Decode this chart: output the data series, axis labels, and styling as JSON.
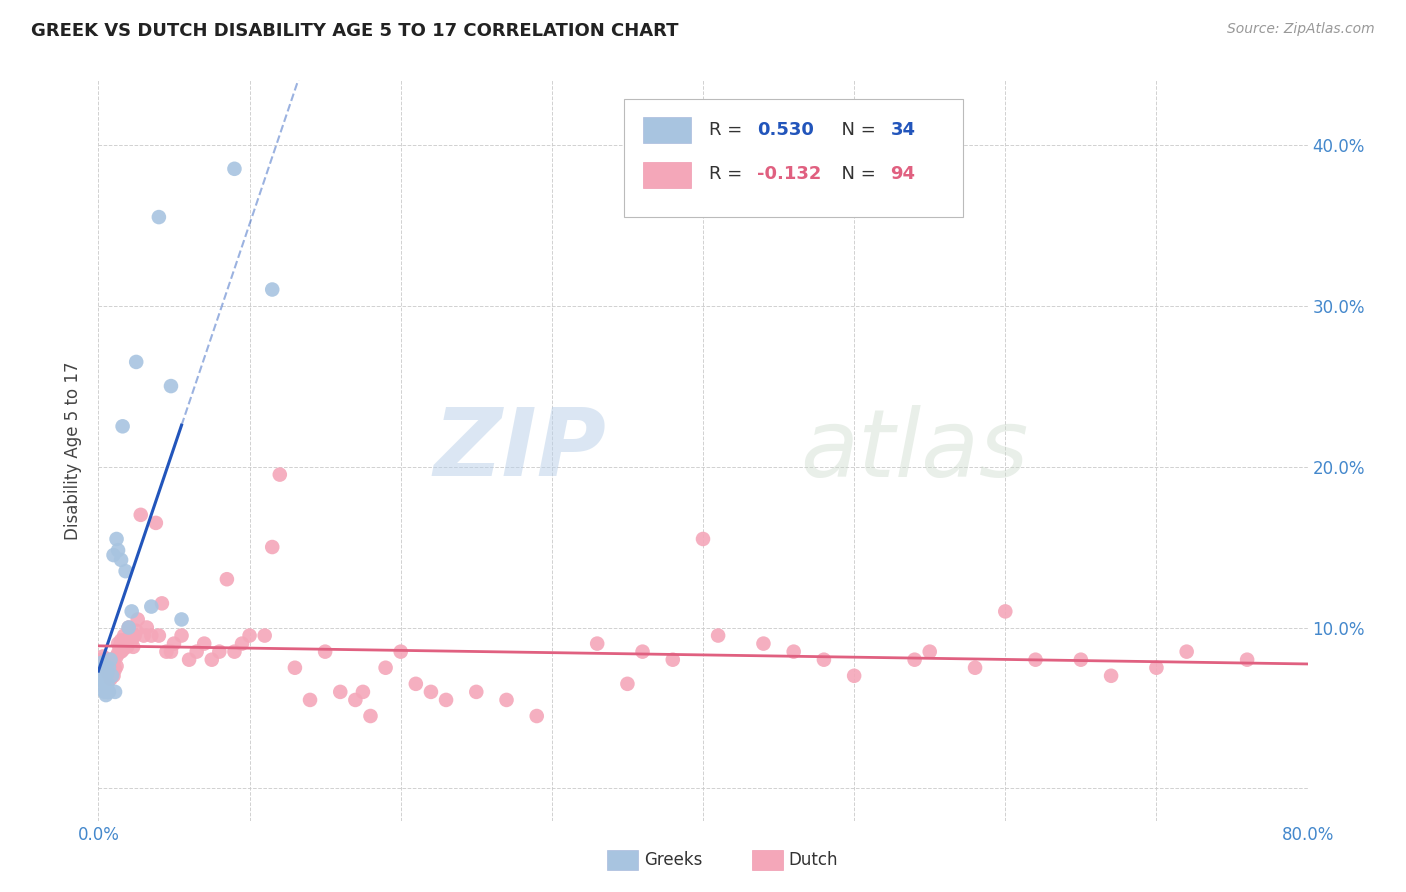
{
  "title": "GREEK VS DUTCH DISABILITY AGE 5 TO 17 CORRELATION CHART",
  "source": "Source: ZipAtlas.com",
  "ylabel": "Disability Age 5 to 17",
  "xlim": [
    0.0,
    0.8
  ],
  "ylim": [
    -0.02,
    0.44
  ],
  "xticks": [
    0.0,
    0.1,
    0.2,
    0.3,
    0.4,
    0.5,
    0.6,
    0.7,
    0.8
  ],
  "xticklabels": [
    "0.0%",
    "",
    "",
    "",
    "",
    "",
    "",
    "",
    "80.0%"
  ],
  "yticks": [
    0.0,
    0.1,
    0.2,
    0.3,
    0.4
  ],
  "yticklabels": [
    "",
    "10.0%",
    "20.0%",
    "30.0%",
    "40.0%"
  ],
  "greek_color": "#a8c4e0",
  "dutch_color": "#f4a7b9",
  "greek_line_color": "#2255bb",
  "dutch_line_color": "#e06080",
  "legend_greek_r": "0.530",
  "legend_greek_n": "34",
  "legend_dutch_r": "-0.132",
  "legend_dutch_n": "94",
  "watermark_zip": "ZIP",
  "watermark_atlas": "atlas",
  "grid_color": "#cccccc",
  "background_color": "#ffffff",
  "greek_x": [
    0.001,
    0.002,
    0.002,
    0.003,
    0.003,
    0.004,
    0.004,
    0.004,
    0.005,
    0.005,
    0.005,
    0.006,
    0.006,
    0.006,
    0.007,
    0.007,
    0.008,
    0.009,
    0.01,
    0.011,
    0.012,
    0.013,
    0.015,
    0.016,
    0.018,
    0.02,
    0.022,
    0.025,
    0.035,
    0.04,
    0.048,
    0.055,
    0.09,
    0.115
  ],
  "greek_y": [
    0.068,
    0.072,
    0.078,
    0.065,
    0.075,
    0.06,
    0.068,
    0.074,
    0.058,
    0.062,
    0.07,
    0.06,
    0.065,
    0.072,
    0.06,
    0.075,
    0.08,
    0.07,
    0.145,
    0.06,
    0.155,
    0.148,
    0.142,
    0.225,
    0.135,
    0.1,
    0.11,
    0.265,
    0.113,
    0.355,
    0.25,
    0.105,
    0.385,
    0.31
  ],
  "dutch_x": [
    0.002,
    0.003,
    0.003,
    0.004,
    0.005,
    0.005,
    0.006,
    0.006,
    0.007,
    0.007,
    0.008,
    0.008,
    0.009,
    0.009,
    0.01,
    0.01,
    0.011,
    0.012,
    0.012,
    0.013,
    0.013,
    0.014,
    0.015,
    0.015,
    0.016,
    0.016,
    0.017,
    0.018,
    0.019,
    0.02,
    0.021,
    0.022,
    0.023,
    0.024,
    0.025,
    0.026,
    0.028,
    0.03,
    0.032,
    0.035,
    0.038,
    0.04,
    0.042,
    0.045,
    0.048,
    0.05,
    0.055,
    0.06,
    0.065,
    0.07,
    0.075,
    0.08,
    0.085,
    0.09,
    0.095,
    0.1,
    0.11,
    0.115,
    0.12,
    0.13,
    0.14,
    0.15,
    0.16,
    0.17,
    0.175,
    0.18,
    0.19,
    0.2,
    0.21,
    0.22,
    0.23,
    0.25,
    0.27,
    0.29,
    0.33,
    0.36,
    0.38,
    0.4,
    0.44,
    0.46,
    0.48,
    0.5,
    0.54,
    0.58,
    0.6,
    0.65,
    0.7,
    0.35,
    0.41,
    0.55,
    0.62,
    0.67,
    0.72,
    0.76
  ],
  "dutch_y": [
    0.08,
    0.082,
    0.078,
    0.076,
    0.08,
    0.074,
    0.078,
    0.072,
    0.076,
    0.08,
    0.074,
    0.068,
    0.078,
    0.072,
    0.078,
    0.07,
    0.074,
    0.082,
    0.076,
    0.09,
    0.084,
    0.088,
    0.085,
    0.092,
    0.09,
    0.086,
    0.095,
    0.092,
    0.088,
    0.1,
    0.095,
    0.092,
    0.088,
    0.095,
    0.098,
    0.105,
    0.17,
    0.095,
    0.1,
    0.095,
    0.165,
    0.095,
    0.115,
    0.085,
    0.085,
    0.09,
    0.095,
    0.08,
    0.085,
    0.09,
    0.08,
    0.085,
    0.13,
    0.085,
    0.09,
    0.095,
    0.095,
    0.15,
    0.195,
    0.075,
    0.055,
    0.085,
    0.06,
    0.055,
    0.06,
    0.045,
    0.075,
    0.085,
    0.065,
    0.06,
    0.055,
    0.06,
    0.055,
    0.045,
    0.09,
    0.085,
    0.08,
    0.155,
    0.09,
    0.085,
    0.08,
    0.07,
    0.08,
    0.075,
    0.11,
    0.08,
    0.075,
    0.065,
    0.095,
    0.085,
    0.08,
    0.07,
    0.085,
    0.08
  ],
  "greek_line_x0": 0.0,
  "greek_line_x1": 0.055,
  "greek_line_x_dash_end": 0.5,
  "dutch_line_x0": 0.0,
  "dutch_line_x1": 0.8
}
